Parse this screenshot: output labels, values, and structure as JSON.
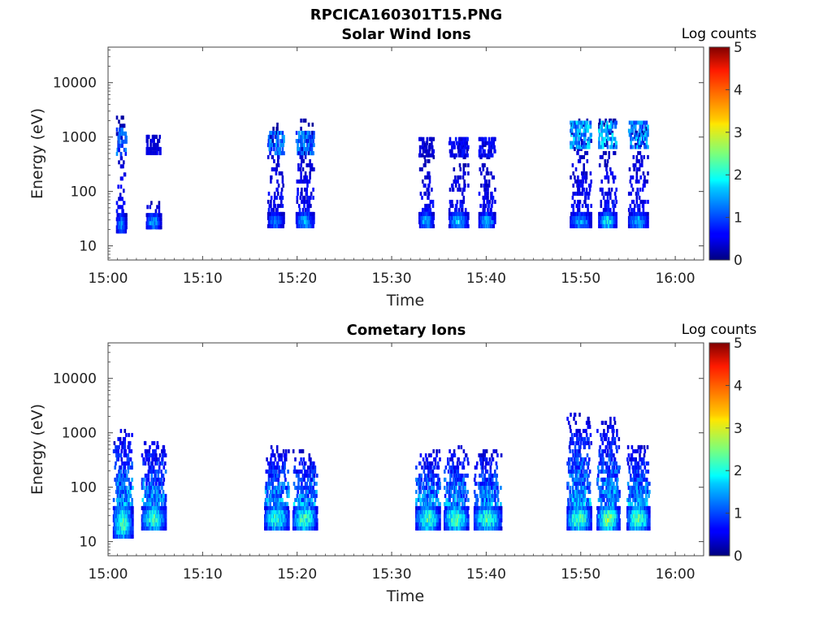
{
  "figure_title": "RPCICA160301T15.PNG",
  "colorbar": {
    "label": "Log counts",
    "min": 0,
    "max": 5,
    "ticks": [
      "0",
      "1",
      "2",
      "3",
      "4",
      "5"
    ]
  },
  "chart_data": [
    {
      "type": "heatmap",
      "title": "Solar Wind Ions",
      "xlabel": "Time",
      "ylabel": "Energy (eV)",
      "x_ticks": [
        "15:00",
        "15:10",
        "15:20",
        "15:30",
        "15:40",
        "15:50",
        "16:00"
      ],
      "y_ticks": [
        "10",
        "100",
        "1000",
        "10000"
      ],
      "y_scale": "log",
      "xlim_minutes_after_1500": [
        0,
        63
      ],
      "ylim_eV": [
        5.5,
        45000
      ],
      "color_scale": "Log counts",
      "bursts": [
        {
          "start": "15:00:50",
          "end": "15:01:50",
          "low_band_eV": [
            18,
            40
          ],
          "low_peak_log_counts": 1.6,
          "tail_top_eV": 2500,
          "upper_band_eV": [
            500,
            1500
          ],
          "upper_peak_log_counts": 1.4
        },
        {
          "start": "15:04:00",
          "end": "15:05:30",
          "low_band_eV": [
            22,
            40
          ],
          "low_peak_log_counts": 1.9,
          "tail_top_eV": 80,
          "upper_band_eV": [
            500,
            1100
          ],
          "upper_peak_log_counts": 0.6
        },
        {
          "start": "15:16:50",
          "end": "15:18:30",
          "low_band_eV": [
            22,
            42
          ],
          "low_peak_log_counts": 1.6,
          "tail_top_eV": 2000,
          "upper_band_eV": [
            500,
            1300
          ],
          "upper_peak_log_counts": 1.5
        },
        {
          "start": "15:19:50",
          "end": "15:21:40",
          "low_band_eV": [
            22,
            42
          ],
          "low_peak_log_counts": 1.9,
          "tail_top_eV": 2500,
          "upper_band_eV": [
            500,
            1300
          ],
          "upper_peak_log_counts": 1.5
        },
        {
          "start": "15:32:50",
          "end": "15:34:20",
          "low_band_eV": [
            22,
            42
          ],
          "low_peak_log_counts": 1.9,
          "tail_top_eV": 900,
          "upper_band_eV": [
            500,
            1000
          ],
          "upper_peak_log_counts": 0.6
        },
        {
          "start": "15:36:00",
          "end": "15:38:00",
          "low_band_eV": [
            22,
            42
          ],
          "low_peak_log_counts": 2.0,
          "tail_top_eV": 900,
          "upper_band_eV": [
            500,
            1000
          ],
          "upper_peak_log_counts": 0.8
        },
        {
          "start": "15:39:10",
          "end": "15:40:50",
          "low_band_eV": [
            22,
            42
          ],
          "low_peak_log_counts": 1.9,
          "tail_top_eV": 900,
          "upper_band_eV": [
            500,
            1000
          ],
          "upper_peak_log_counts": 0.8
        },
        {
          "start": "15:48:50",
          "end": "15:51:00",
          "low_band_eV": [
            22,
            42
          ],
          "low_peak_log_counts": 1.8,
          "tail_top_eV": 2500,
          "upper_band_eV": [
            700,
            2000
          ],
          "upper_peak_log_counts": 1.9
        },
        {
          "start": "15:51:50",
          "end": "15:53:40",
          "low_band_eV": [
            22,
            42
          ],
          "low_peak_log_counts": 2.3,
          "tail_top_eV": 2500,
          "upper_band_eV": [
            700,
            2000
          ],
          "upper_peak_log_counts": 1.9
        },
        {
          "start": "15:55:00",
          "end": "15:57:00",
          "low_band_eV": [
            22,
            42
          ],
          "low_peak_log_counts": 1.9,
          "tail_top_eV": 2500,
          "upper_band_eV": [
            700,
            2000
          ],
          "upper_peak_log_counts": 1.8
        }
      ]
    },
    {
      "type": "heatmap",
      "title": "Cometary Ions",
      "xlabel": "Time",
      "ylabel": "Energy (eV)",
      "x_ticks": [
        "15:00",
        "15:10",
        "15:20",
        "15:30",
        "15:40",
        "15:50",
        "16:00"
      ],
      "y_ticks": [
        "10",
        "100",
        "1000",
        "10000"
      ],
      "y_scale": "log",
      "xlim_minutes_after_1500": [
        0,
        63
      ],
      "ylim_eV": [
        5.5,
        45000
      ],
      "color_scale": "Log counts",
      "bursts": [
        {
          "start": "15:00:30",
          "end": "15:02:30",
          "low_band_eV": [
            13,
            45
          ],
          "low_peak_log_counts": 2.7,
          "tail_top_eV": 1300
        },
        {
          "start": "15:03:30",
          "end": "15:06:00",
          "low_band_eV": [
            18,
            45
          ],
          "low_peak_log_counts": 2.7,
          "tail_top_eV": 800
        },
        {
          "start": "15:16:30",
          "end": "15:19:00",
          "low_band_eV": [
            18,
            45
          ],
          "low_peak_log_counts": 2.7,
          "tail_top_eV": 600
        },
        {
          "start": "15:19:30",
          "end": "15:22:00",
          "low_band_eV": [
            18,
            45
          ],
          "low_peak_log_counts": 2.8,
          "tail_top_eV": 500
        },
        {
          "start": "15:32:30",
          "end": "15:35:00",
          "low_band_eV": [
            18,
            45
          ],
          "low_peak_log_counts": 2.8,
          "tail_top_eV": 500
        },
        {
          "start": "15:35:30",
          "end": "15:38:00",
          "low_band_eV": [
            18,
            45
          ],
          "low_peak_log_counts": 2.9,
          "tail_top_eV": 600
        },
        {
          "start": "15:38:40",
          "end": "15:41:30",
          "low_band_eV": [
            18,
            45
          ],
          "low_peak_log_counts": 2.8,
          "tail_top_eV": 500
        },
        {
          "start": "15:48:30",
          "end": "15:51:00",
          "low_band_eV": [
            18,
            45
          ],
          "low_peak_log_counts": 2.9,
          "tail_top_eV": 2500
        },
        {
          "start": "15:51:40",
          "end": "15:54:00",
          "low_band_eV": [
            18,
            45
          ],
          "low_peak_log_counts": 3.1,
          "tail_top_eV": 2000
        },
        {
          "start": "15:54:50",
          "end": "15:57:10",
          "low_band_eV": [
            18,
            45
          ],
          "low_peak_log_counts": 2.9,
          "tail_top_eV": 600
        }
      ]
    }
  ]
}
